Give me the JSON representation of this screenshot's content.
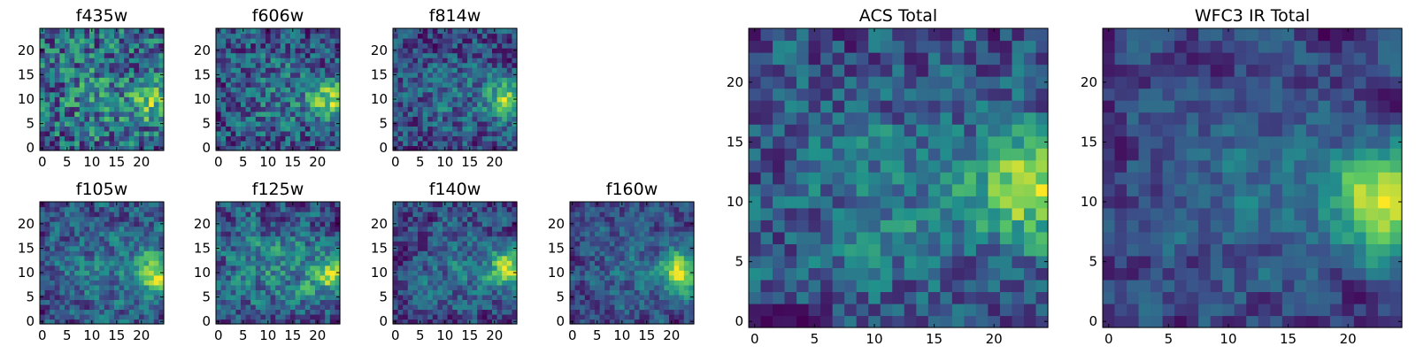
{
  "chart_data": [
    {
      "type": "heatmap",
      "title": "f435w",
      "xlim": [
        -0.5,
        24.5
      ],
      "ylim": [
        -0.5,
        24.5
      ],
      "xticks": [
        0,
        5,
        10,
        15,
        20
      ],
      "yticks": [
        0,
        5,
        10,
        15,
        20
      ],
      "grid_size": [
        25,
        25
      ],
      "colormap": "viridis",
      "source_position": [
        23,
        9
      ],
      "source_strength": 0.35,
      "noise_level": 0.9,
      "seed": 11
    },
    {
      "type": "heatmap",
      "title": "f606w",
      "xlim": [
        -0.5,
        24.5
      ],
      "ylim": [
        -0.5,
        24.5
      ],
      "xticks": [
        0,
        5,
        10,
        15,
        20
      ],
      "yticks": [
        0,
        5,
        10,
        15,
        20
      ],
      "grid_size": [
        25,
        25
      ],
      "colormap": "viridis",
      "source_position": [
        23,
        10
      ],
      "source_strength": 0.55,
      "noise_level": 0.75,
      "seed": 23
    },
    {
      "type": "heatmap",
      "title": "f814w",
      "xlim": [
        -0.5,
        24.5
      ],
      "ylim": [
        -0.5,
        24.5
      ],
      "xticks": [
        0,
        5,
        10,
        15,
        20
      ],
      "yticks": [
        0,
        5,
        10,
        15,
        20
      ],
      "grid_size": [
        25,
        25
      ],
      "colormap": "viridis",
      "source_position": [
        23,
        10
      ],
      "source_strength": 0.6,
      "noise_level": 0.7,
      "seed": 37
    },
    {
      "type": "heatmap",
      "title": "f105w",
      "xlim": [
        -0.5,
        24.5
      ],
      "ylim": [
        -0.5,
        24.5
      ],
      "xticks": [
        0,
        5,
        10,
        15,
        20
      ],
      "yticks": [
        0,
        5,
        10,
        15,
        20
      ],
      "grid_size": [
        25,
        25
      ],
      "colormap": "viridis",
      "source_position": [
        23,
        10
      ],
      "source_strength": 0.55,
      "noise_level": 0.5,
      "seed": 41
    },
    {
      "type": "heatmap",
      "title": "f125w",
      "xlim": [
        -0.5,
        24.5
      ],
      "ylim": [
        -0.5,
        24.5
      ],
      "xticks": [
        0,
        5,
        10,
        15,
        20
      ],
      "yticks": [
        0,
        5,
        10,
        15,
        20
      ],
      "grid_size": [
        25,
        25
      ],
      "colormap": "viridis",
      "source_position": [
        23,
        10
      ],
      "source_strength": 0.5,
      "noise_level": 0.55,
      "seed": 53
    },
    {
      "type": "heatmap",
      "title": "f140w",
      "xlim": [
        -0.5,
        24.5
      ],
      "ylim": [
        -0.5,
        24.5
      ],
      "xticks": [
        0,
        5,
        10,
        15,
        20
      ],
      "yticks": [
        0,
        5,
        10,
        15,
        20
      ],
      "grid_size": [
        25,
        25
      ],
      "colormap": "viridis",
      "source_position": [
        23,
        11
      ],
      "source_strength": 0.6,
      "noise_level": 0.5,
      "seed": 67
    },
    {
      "type": "heatmap",
      "title": "f160w",
      "xlim": [
        -0.5,
        24.5
      ],
      "ylim": [
        -0.5,
        24.5
      ],
      "xticks": [
        0,
        5,
        10,
        15,
        20
      ],
      "yticks": [
        0,
        5,
        10,
        15,
        20
      ],
      "grid_size": [
        25,
        25
      ],
      "colormap": "viridis",
      "source_position": [
        22,
        10
      ],
      "source_strength": 0.7,
      "noise_level": 0.5,
      "seed": 79
    },
    {
      "type": "heatmap",
      "title": "ACS Total",
      "xlim": [
        -0.5,
        24.5
      ],
      "ylim": [
        -0.5,
        24.5
      ],
      "xticks": [
        0,
        5,
        10,
        15,
        20
      ],
      "yticks": [
        0,
        5,
        10,
        15,
        20
      ],
      "grid_size": [
        25,
        25
      ],
      "colormap": "viridis",
      "source_position": [
        23,
        11
      ],
      "source_strength": 0.6,
      "noise_level": 0.6,
      "seed": 97
    },
    {
      "type": "heatmap",
      "title": "WFC3 IR Total",
      "xlim": [
        -0.5,
        24.5
      ],
      "ylim": [
        -0.5,
        24.5
      ],
      "xticks": [
        0,
        5,
        10,
        15,
        20
      ],
      "yticks": [
        0,
        5,
        10,
        15,
        20
      ],
      "grid_size": [
        25,
        25
      ],
      "colormap": "viridis",
      "source_position": [
        23,
        10
      ],
      "source_strength": 0.75,
      "noise_level": 0.4,
      "seed": 113
    }
  ],
  "colormap_stops": [
    "#440154",
    "#3b528b",
    "#21918c",
    "#5ec962",
    "#fde725"
  ]
}
